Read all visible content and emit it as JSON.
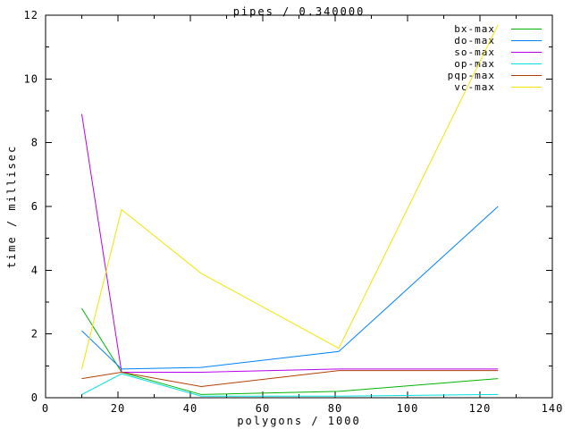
{
  "window": {
    "background": "#ffffff",
    "foreground": "#000000"
  },
  "chart_data": {
    "type": "line",
    "title": "pipes / 0.340000",
    "xlabel": "polygons / 1000",
    "ylabel": "time / millisec",
    "xlim": [
      0,
      140
    ],
    "ylim": [
      0,
      12
    ],
    "x_major_ticks": [
      0,
      20,
      40,
      60,
      80,
      100,
      120,
      140
    ],
    "x_minor_step": 10,
    "y_major_ticks": [
      0,
      2,
      4,
      6,
      8,
      10,
      12
    ],
    "y_minor_step": 1,
    "grid": false,
    "legend_position": "top-right-inside",
    "x": [
      10,
      21,
      43,
      81,
      125
    ],
    "series": [
      {
        "name": "bx-max",
        "color": "#00b400",
        "values": [
          2.8,
          0.8,
          0.1,
          0.2,
          0.6
        ]
      },
      {
        "name": "do-max",
        "color": "#0080ff",
        "values": [
          2.1,
          0.9,
          0.95,
          1.45,
          6.0
        ]
      },
      {
        "name": "so-max",
        "color": "#b800f0",
        "values": [
          8.9,
          0.8,
          0.8,
          0.9,
          0.9
        ]
      },
      {
        "name": "op-max",
        "color": "#00e0e0",
        "values": [
          0.1,
          0.75,
          0.05,
          0.05,
          0.1
        ]
      },
      {
        "name": "pqp-max",
        "color": "#b04000",
        "values": [
          0.6,
          0.8,
          0.35,
          0.85,
          0.85
        ]
      },
      {
        "name": "vc-max",
        "color": "#f0e500",
        "values": [
          0.9,
          5.9,
          3.9,
          1.55,
          11.7
        ]
      }
    ]
  }
}
